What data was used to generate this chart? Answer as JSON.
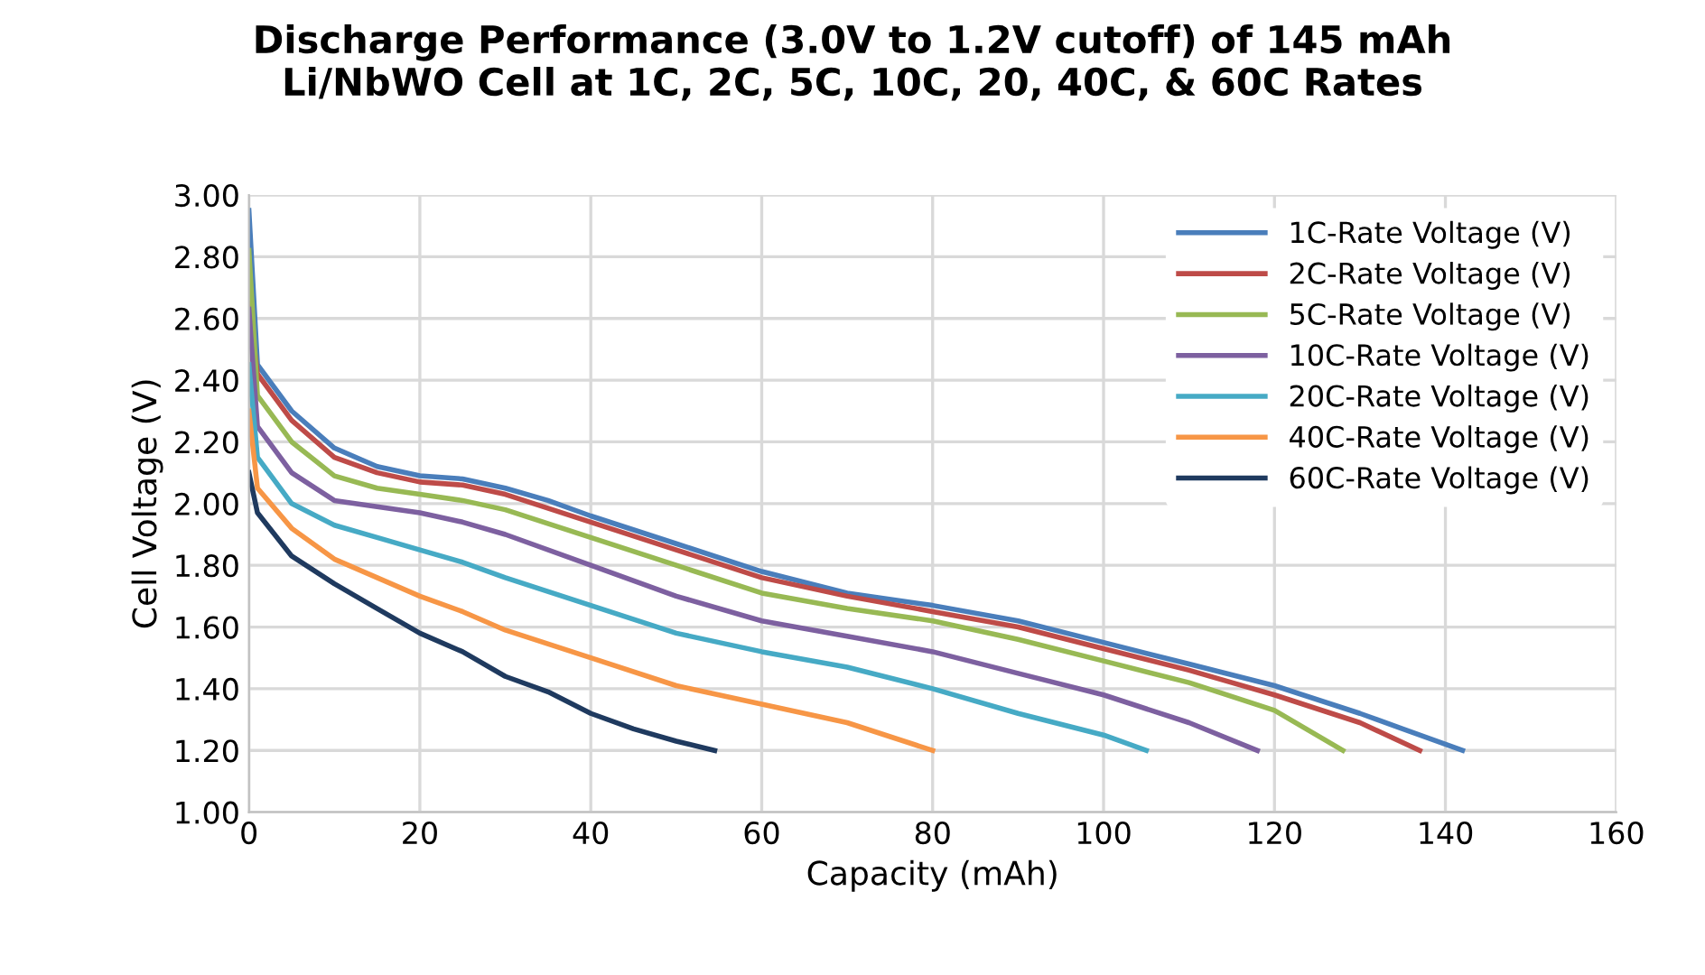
{
  "chart_data": {
    "type": "line",
    "title": "Discharge Performance (3.0V to 1.2V cutoff) of 145 mAh\nLi/NbWO Cell at 1C, 2C, 5C, 10C, 20, 40C, & 60C Rates",
    "xlabel": "Capacity (mAh)",
    "ylabel": "Cell Voltage (V)",
    "xlim": [
      0,
      160
    ],
    "ylim": [
      1.0,
      3.0
    ],
    "xticks": [
      0,
      20,
      40,
      60,
      80,
      100,
      120,
      140,
      160
    ],
    "yticks": [
      {
        "value": 1.0,
        "label": "1.00"
      },
      {
        "value": 1.2,
        "label": "1.20"
      },
      {
        "value": 1.4,
        "label": "1.40"
      },
      {
        "value": 1.6,
        "label": "1.60"
      },
      {
        "value": 1.8,
        "label": "1.80"
      },
      {
        "value": 2.0,
        "label": "2.00"
      },
      {
        "value": 2.2,
        "label": "2.20"
      },
      {
        "value": 2.4,
        "label": "2.40"
      },
      {
        "value": 2.6,
        "label": "2.60"
      },
      {
        "value": 2.8,
        "label": "2.80"
      },
      {
        "value": 3.0,
        "label": "3.00"
      }
    ],
    "grid": true,
    "legend": "top right",
    "marker": "none",
    "line_style": "solid",
    "series": [
      {
        "name": "1C-Rate Voltage (V)",
        "color": "#4a7ebb",
        "x": [
          0,
          1,
          5,
          10,
          15,
          20,
          25,
          30,
          35,
          40,
          50,
          60,
          70,
          80,
          90,
          100,
          110,
          120,
          130,
          135,
          142
        ],
        "values": [
          2.95,
          2.45,
          2.3,
          2.18,
          2.12,
          2.09,
          2.08,
          2.05,
          2.01,
          1.96,
          1.87,
          1.78,
          1.71,
          1.67,
          1.62,
          1.55,
          1.48,
          1.41,
          1.32,
          1.27,
          1.2
        ]
      },
      {
        "name": "2C-Rate Voltage (V)",
        "color": "#be4b48",
        "x": [
          0,
          1,
          5,
          10,
          15,
          20,
          25,
          30,
          40,
          50,
          60,
          70,
          80,
          90,
          100,
          110,
          120,
          130,
          137
        ],
        "values": [
          2.65,
          2.42,
          2.27,
          2.15,
          2.1,
          2.07,
          2.06,
          2.03,
          1.94,
          1.85,
          1.76,
          1.7,
          1.65,
          1.6,
          1.53,
          1.46,
          1.38,
          1.29,
          1.2
        ]
      },
      {
        "name": "5C-Rate Voltage (V)",
        "color": "#98b954",
        "x": [
          0,
          1,
          5,
          10,
          15,
          20,
          25,
          30,
          40,
          50,
          60,
          70,
          80,
          90,
          100,
          110,
          120,
          128
        ],
        "values": [
          2.82,
          2.35,
          2.2,
          2.09,
          2.05,
          2.03,
          2.01,
          1.98,
          1.89,
          1.8,
          1.71,
          1.66,
          1.62,
          1.56,
          1.49,
          1.42,
          1.33,
          1.2
        ]
      },
      {
        "name": "10C-Rate Voltage (V)",
        "color": "#7d60a0",
        "x": [
          0,
          1,
          5,
          10,
          15,
          20,
          25,
          30,
          40,
          50,
          60,
          70,
          80,
          90,
          100,
          110,
          118
        ],
        "values": [
          2.63,
          2.25,
          2.1,
          2.01,
          1.99,
          1.97,
          1.94,
          1.9,
          1.8,
          1.7,
          1.62,
          1.57,
          1.52,
          1.45,
          1.38,
          1.29,
          1.2
        ]
      },
      {
        "name": "20C-Rate Voltage (V)",
        "color": "#46aac5",
        "x": [
          0,
          1,
          5,
          10,
          15,
          20,
          25,
          30,
          40,
          50,
          60,
          70,
          80,
          90,
          100,
          105
        ],
        "values": [
          2.45,
          2.15,
          2.0,
          1.93,
          1.89,
          1.85,
          1.81,
          1.76,
          1.67,
          1.58,
          1.52,
          1.47,
          1.4,
          1.32,
          1.25,
          1.2
        ]
      },
      {
        "name": "40C-Rate Voltage (V)",
        "color": "#f79646",
        "x": [
          0,
          1,
          5,
          10,
          15,
          20,
          25,
          30,
          40,
          50,
          60,
          70,
          80
        ],
        "values": [
          2.3,
          2.05,
          1.92,
          1.82,
          1.76,
          1.7,
          1.65,
          1.59,
          1.5,
          1.41,
          1.35,
          1.29,
          1.2
        ]
      },
      {
        "name": "60C-Rate Voltage (V)",
        "color": "#1f3a5f",
        "x": [
          0,
          1,
          5,
          10,
          15,
          20,
          25,
          30,
          35,
          40,
          45,
          50,
          54.5
        ],
        "values": [
          2.1,
          1.97,
          1.83,
          1.74,
          1.66,
          1.58,
          1.52,
          1.44,
          1.39,
          1.32,
          1.27,
          1.23,
          1.2
        ]
      }
    ]
  }
}
